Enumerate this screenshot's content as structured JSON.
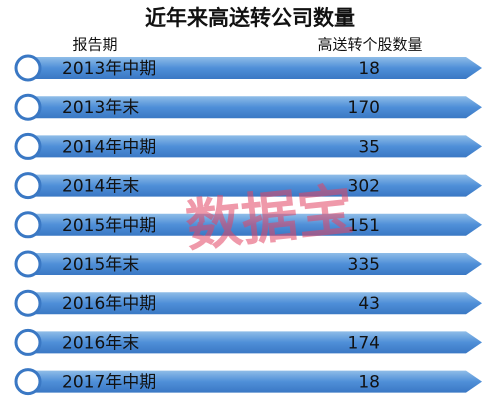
{
  "title": "近年来高送转公司数量",
  "header": {
    "period": "报告期",
    "count": "高送转个股数量"
  },
  "table": {
    "rows": [
      [
        "2013年中期",
        18
      ],
      [
        "2013年末",
        170
      ],
      [
        "2014年中期",
        35
      ],
      [
        "2014年末",
        302
      ],
      [
        "2015年中期",
        151
      ],
      [
        "2015年末",
        335
      ],
      [
        "2016年中期",
        43
      ],
      [
        "2016年末",
        174
      ],
      [
        "2017年中期",
        18
      ]
    ]
  },
  "watermark": "数据宝"
}
